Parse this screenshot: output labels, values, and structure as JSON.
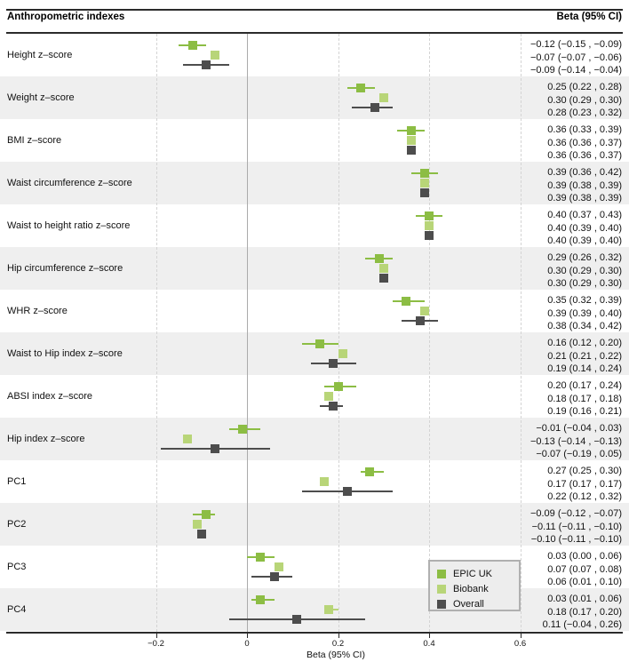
{
  "header": {
    "left_title": "Anthropometric indexes",
    "right_title": "Beta (95% CI)"
  },
  "axis": {
    "label": "Beta (95% CI)",
    "tick_labels": [
      "−0.2",
      "0",
      "0.2",
      "0.4",
      "0.6"
    ],
    "tick_values": [
      -0.2,
      0,
      0.2,
      0.4,
      0.6
    ]
  },
  "legend": {
    "items": [
      {
        "label": "EPIC UK",
        "color": "#8cbd44"
      },
      {
        "label": "Biobank",
        "color": "#b8d578"
      },
      {
        "label": "Overall",
        "color": "#4d4d4d"
      }
    ]
  },
  "colors": {
    "epic": "#8cbd44",
    "biobank": "#b8d578",
    "overall": "#4d4d4d",
    "band_gray": "#efefef",
    "grid_dashed": "#d4d4d4",
    "zero_line": "#ababab",
    "rule": "#2b2b2b"
  },
  "chart_data": {
    "type": "forest",
    "title_left": "Anthropometric indexes",
    "title_right": "Beta (95% CI)",
    "xlabel": "Beta (95% CI)",
    "xticks": [
      -0.2,
      0,
      0.2,
      0.4,
      0.6
    ],
    "xlim": [
      -0.54,
      0.84
    ],
    "grid": "dashed-vertical",
    "zero_reference_line": 0,
    "series_names": [
      "EPIC UK",
      "Biobank",
      "Overall"
    ],
    "rows": [
      {
        "label": "Height z–score",
        "estimates": [
          {
            "series": "EPIC UK",
            "beta": -0.12,
            "lo": -0.15,
            "hi": -0.09,
            "text": "−0.12 (−0.15 , −0.09)"
          },
          {
            "series": "Biobank",
            "beta": -0.07,
            "lo": -0.07,
            "hi": -0.06,
            "text": "−0.07 (−0.07 , −0.06)"
          },
          {
            "series": "Overall",
            "beta": -0.09,
            "lo": -0.14,
            "hi": -0.04,
            "text": "−0.09 (−0.14 , −0.04)"
          }
        ]
      },
      {
        "label": "Weight z–score",
        "estimates": [
          {
            "series": "EPIC UK",
            "beta": 0.25,
            "lo": 0.22,
            "hi": 0.28,
            "text": "0.25 (0.22 , 0.28)"
          },
          {
            "series": "Biobank",
            "beta": 0.3,
            "lo": 0.29,
            "hi": 0.3,
            "text": "0.30 (0.29 , 0.30)"
          },
          {
            "series": "Overall",
            "beta": 0.28,
            "lo": 0.23,
            "hi": 0.32,
            "text": "0.28 (0.23 , 0.32)"
          }
        ]
      },
      {
        "label": "BMI z–score",
        "estimates": [
          {
            "series": "EPIC UK",
            "beta": 0.36,
            "lo": 0.33,
            "hi": 0.39,
            "text": "0.36 (0.33 , 0.39)"
          },
          {
            "series": "Biobank",
            "beta": 0.36,
            "lo": 0.36,
            "hi": 0.37,
            "text": "0.36 (0.36 , 0.37)"
          },
          {
            "series": "Overall",
            "beta": 0.36,
            "lo": 0.36,
            "hi": 0.37,
            "text": "0.36 (0.36 , 0.37)"
          }
        ]
      },
      {
        "label": "Waist circumference z–score",
        "estimates": [
          {
            "series": "EPIC UK",
            "beta": 0.39,
            "lo": 0.36,
            "hi": 0.42,
            "text": "0.39 (0.36 , 0.42)"
          },
          {
            "series": "Biobank",
            "beta": 0.39,
            "lo": 0.38,
            "hi": 0.39,
            "text": "0.39 (0.38 , 0.39)"
          },
          {
            "series": "Overall",
            "beta": 0.39,
            "lo": 0.38,
            "hi": 0.39,
            "text": "0.39 (0.38 , 0.39)"
          }
        ]
      },
      {
        "label": "Waist to height ratio z–score",
        "estimates": [
          {
            "series": "EPIC UK",
            "beta": 0.4,
            "lo": 0.37,
            "hi": 0.43,
            "text": "0.40 (0.37 , 0.43)"
          },
          {
            "series": "Biobank",
            "beta": 0.4,
            "lo": 0.39,
            "hi": 0.4,
            "text": "0.40 (0.39 , 0.40)"
          },
          {
            "series": "Overall",
            "beta": 0.4,
            "lo": 0.39,
            "hi": 0.4,
            "text": "0.40 (0.39 , 0.40)"
          }
        ]
      },
      {
        "label": "Hip circumference z–score",
        "estimates": [
          {
            "series": "EPIC UK",
            "beta": 0.29,
            "lo": 0.26,
            "hi": 0.32,
            "text": "0.29 (0.26 , 0.32)"
          },
          {
            "series": "Biobank",
            "beta": 0.3,
            "lo": 0.29,
            "hi": 0.3,
            "text": "0.30 (0.29 , 0.30)"
          },
          {
            "series": "Overall",
            "beta": 0.3,
            "lo": 0.29,
            "hi": 0.3,
            "text": "0.30 (0.29 , 0.30)"
          }
        ]
      },
      {
        "label": "WHR z–score",
        "estimates": [
          {
            "series": "EPIC UK",
            "beta": 0.35,
            "lo": 0.32,
            "hi": 0.39,
            "text": "0.35 (0.32 , 0.39)"
          },
          {
            "series": "Biobank",
            "beta": 0.39,
            "lo": 0.39,
            "hi": 0.4,
            "text": "0.39 (0.39 , 0.40)"
          },
          {
            "series": "Overall",
            "beta": 0.38,
            "lo": 0.34,
            "hi": 0.42,
            "text": "0.38 (0.34 , 0.42)"
          }
        ]
      },
      {
        "label": "Waist to Hip index z–score",
        "estimates": [
          {
            "series": "EPIC UK",
            "beta": 0.16,
            "lo": 0.12,
            "hi": 0.2,
            "text": "0.16 (0.12 , 0.20)"
          },
          {
            "series": "Biobank",
            "beta": 0.21,
            "lo": 0.21,
            "hi": 0.22,
            "text": "0.21 (0.21 , 0.22)"
          },
          {
            "series": "Overall",
            "beta": 0.19,
            "lo": 0.14,
            "hi": 0.24,
            "text": "0.19 (0.14 , 0.24)"
          }
        ]
      },
      {
        "label": "ABSI index z–score",
        "estimates": [
          {
            "series": "EPIC UK",
            "beta": 0.2,
            "lo": 0.17,
            "hi": 0.24,
            "text": "0.20 (0.17 , 0.24)"
          },
          {
            "series": "Biobank",
            "beta": 0.18,
            "lo": 0.17,
            "hi": 0.18,
            "text": "0.18 (0.17 , 0.18)"
          },
          {
            "series": "Overall",
            "beta": 0.19,
            "lo": 0.16,
            "hi": 0.21,
            "text": "0.19 (0.16 , 0.21)"
          }
        ]
      },
      {
        "label": "Hip index z–score",
        "estimates": [
          {
            "series": "EPIC UK",
            "beta": -0.01,
            "lo": -0.04,
            "hi": 0.03,
            "text": "−0.01 (−0.04 , 0.03)"
          },
          {
            "series": "Biobank",
            "beta": -0.13,
            "lo": -0.14,
            "hi": -0.13,
            "text": "−0.13 (−0.14 , −0.13)"
          },
          {
            "series": "Overall",
            "beta": -0.07,
            "lo": -0.19,
            "hi": 0.05,
            "text": "−0.07 (−0.19 , 0.05)"
          }
        ]
      },
      {
        "label": "PC1",
        "estimates": [
          {
            "series": "EPIC UK",
            "beta": 0.27,
            "lo": 0.25,
            "hi": 0.3,
            "text": "0.27 (0.25 , 0.30)"
          },
          {
            "series": "Biobank",
            "beta": 0.17,
            "lo": 0.17,
            "hi": 0.17,
            "text": "0.17 (0.17 , 0.17)"
          },
          {
            "series": "Overall",
            "beta": 0.22,
            "lo": 0.12,
            "hi": 0.32,
            "text": "0.22 (0.12 , 0.32)"
          }
        ]
      },
      {
        "label": "PC2",
        "estimates": [
          {
            "series": "EPIC UK",
            "beta": -0.09,
            "lo": -0.12,
            "hi": -0.07,
            "text": "−0.09 (−0.12 , −0.07)"
          },
          {
            "series": "Biobank",
            "beta": -0.11,
            "lo": -0.11,
            "hi": -0.1,
            "text": "−0.11 (−0.11 , −0.10)"
          },
          {
            "series": "Overall",
            "beta": -0.1,
            "lo": -0.11,
            "hi": -0.1,
            "text": "−0.10 (−0.11 , −0.10)"
          }
        ]
      },
      {
        "label": "PC3",
        "estimates": [
          {
            "series": "EPIC UK",
            "beta": 0.03,
            "lo": 0.0,
            "hi": 0.06,
            "text": "0.03 (0.00 , 0.06)"
          },
          {
            "series": "Biobank",
            "beta": 0.07,
            "lo": 0.07,
            "hi": 0.08,
            "text": "0.07 (0.07 , 0.08)"
          },
          {
            "series": "Overall",
            "beta": 0.06,
            "lo": 0.01,
            "hi": 0.1,
            "text": "0.06 (0.01 , 0.10)"
          }
        ]
      },
      {
        "label": "PC4",
        "estimates": [
          {
            "series": "EPIC UK",
            "beta": 0.03,
            "lo": 0.01,
            "hi": 0.06,
            "text": "0.03 (0.01 , 0.06)"
          },
          {
            "series": "Biobank",
            "beta": 0.18,
            "lo": 0.17,
            "hi": 0.2,
            "text": "0.18 (0.17 , 0.20)"
          },
          {
            "series": "Overall",
            "beta": 0.11,
            "lo": -0.04,
            "hi": 0.26,
            "text": "0.11 (−0.04 , 0.26)"
          }
        ]
      }
    ]
  }
}
